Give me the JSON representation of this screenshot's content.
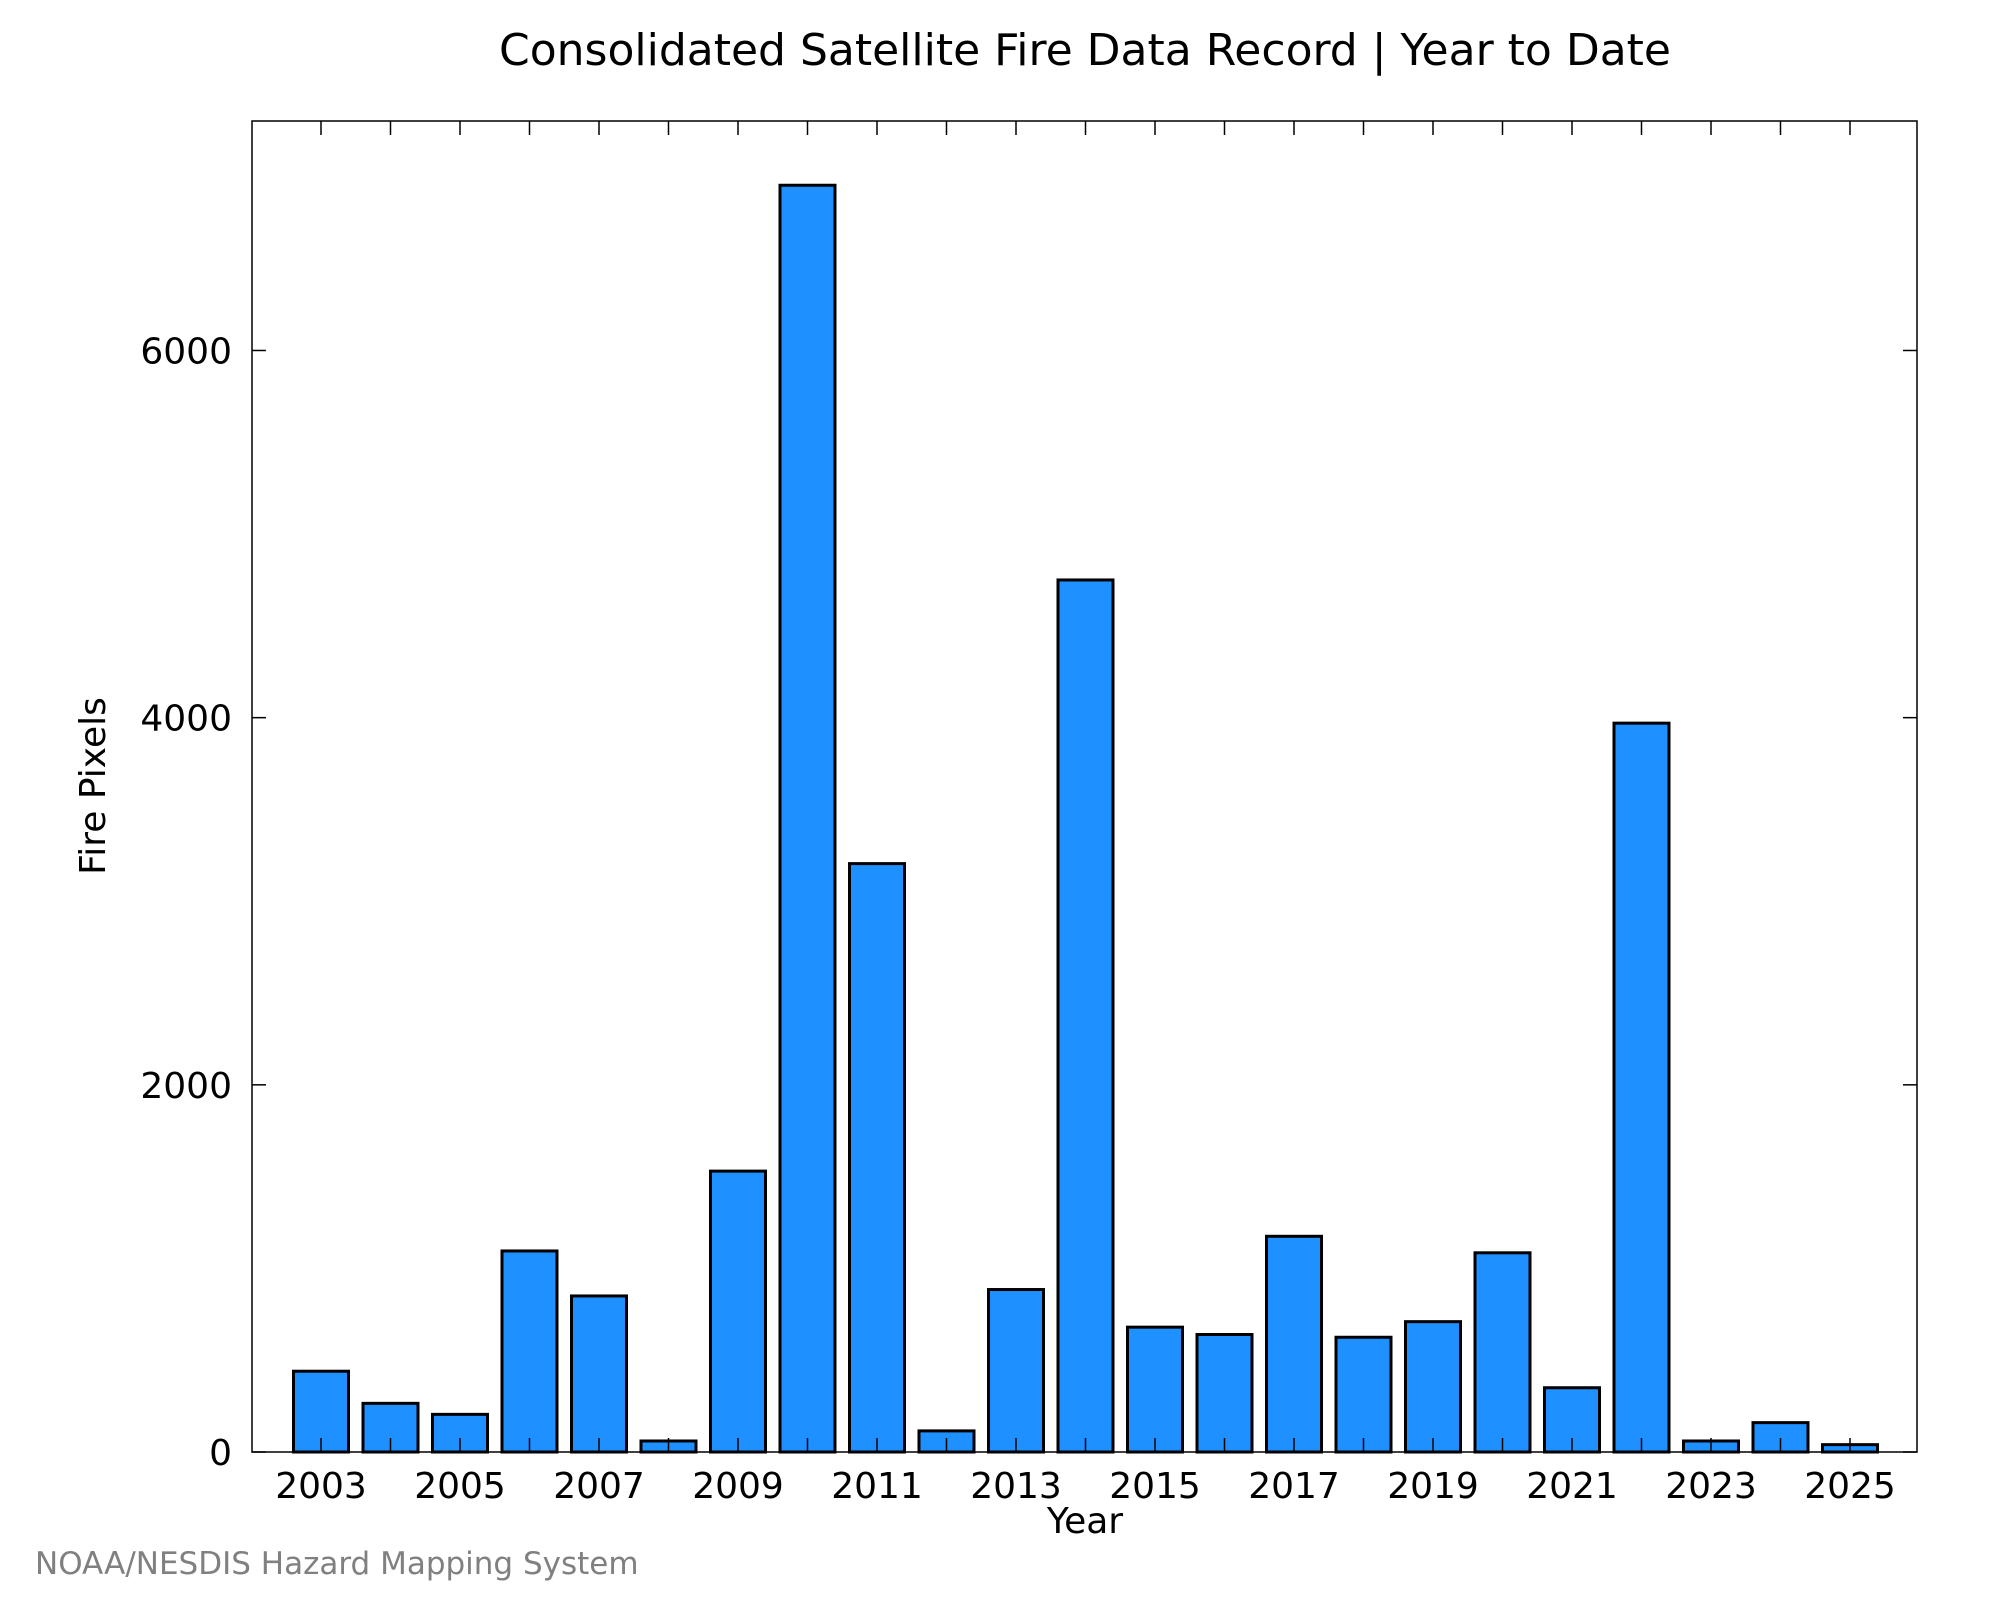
{
  "credit": "NOAA/NESDIS Hazard Mapping System",
  "colors": {
    "bar_fill": "#1e90ff",
    "bar_stroke": "#000000",
    "credit_text": "#808080"
  },
  "chart_data": {
    "type": "bar",
    "title": "Consolidated Satellite Fire Data Record | Year to Date",
    "xlabel": "Year",
    "ylabel": "Fire Pixels",
    "categories": [
      "2003",
      "2004",
      "2005",
      "2006",
      "2007",
      "2008",
      "2009",
      "2010",
      "2011",
      "2012",
      "2013",
      "2014",
      "2015",
      "2016",
      "2017",
      "2018",
      "2019",
      "2020",
      "2021",
      "2022",
      "2023",
      "2024",
      "2025"
    ],
    "values": [
      440,
      265,
      205,
      1095,
      850,
      60,
      1530,
      6900,
      3205,
      115,
      885,
      4750,
      680,
      640,
      1175,
      625,
      710,
      1085,
      350,
      3970,
      60,
      160,
      40
    ],
    "x_tick_labels": [
      "2003",
      "2005",
      "2007",
      "2009",
      "2011",
      "2013",
      "2015",
      "2017",
      "2019",
      "2021",
      "2023",
      "2025"
    ],
    "y_ticks": [
      0,
      2000,
      4000,
      6000
    ],
    "ylim": [
      0,
      7250
    ],
    "grid": false,
    "legend": "none"
  }
}
